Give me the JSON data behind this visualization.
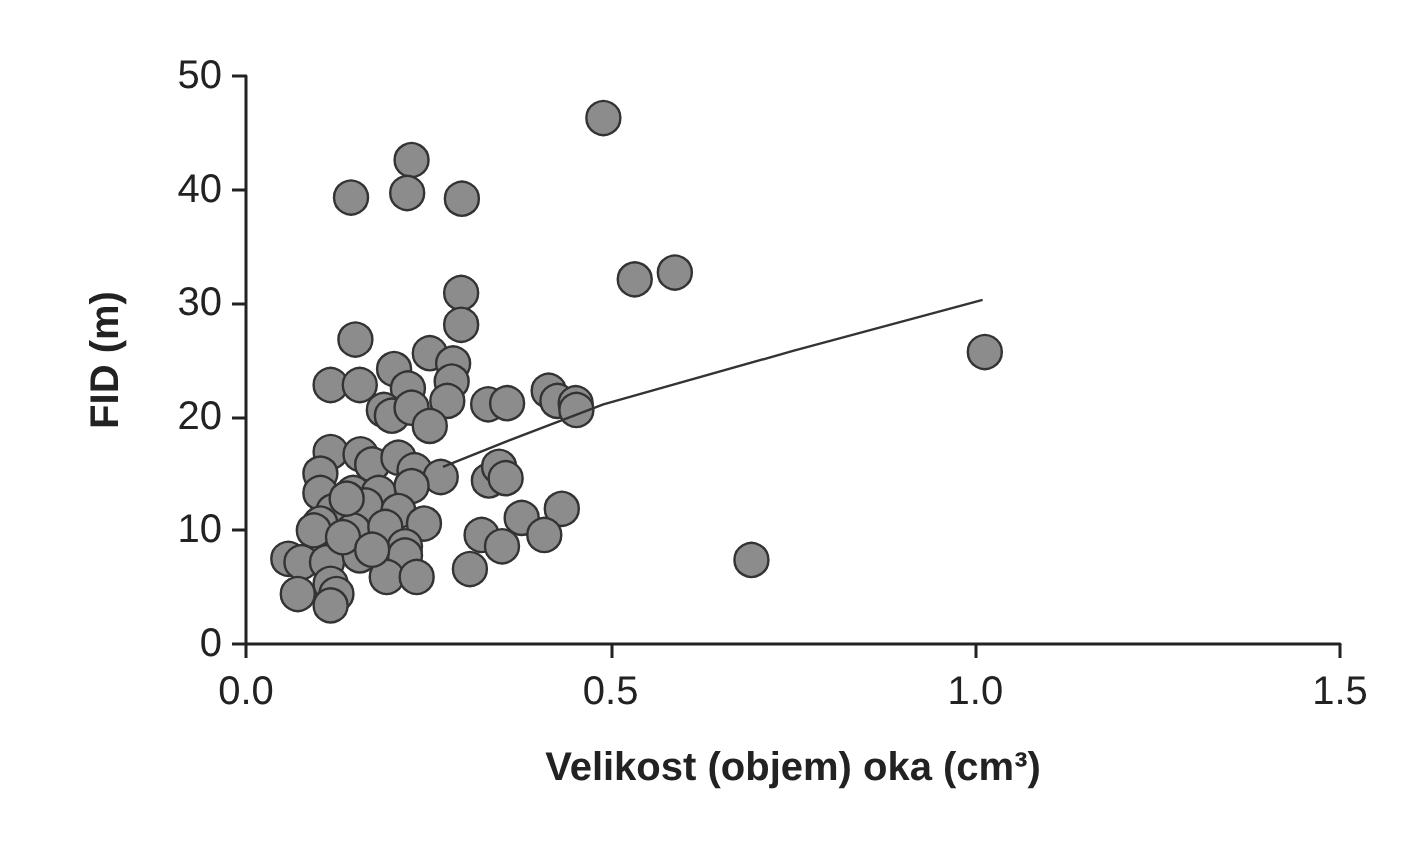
{
  "chart_data": {
    "type": "scatter",
    "xlabel": "Velikost (objem) oka (cm³)",
    "ylabel": "FID (m)",
    "xlim": [
      0,
      1.5
    ],
    "xticks": [
      {
        "value": 0,
        "label": "0.0"
      },
      0.5,
      {
        "value": 1,
        "label": "1.0"
      },
      1.5
    ],
    "ylim": [
      0,
      50
    ],
    "yticks": [
      0,
      10,
      20,
      30,
      40,
      50
    ],
    "grid": false,
    "marker": "circle",
    "series": [
      {
        "color": "#8c8c8c",
        "x": [
          0.49,
          0.227,
          0.144,
          0.221,
          0.296,
          0.533,
          0.588,
          0.295,
          0.295,
          0.15,
          0.252,
          0.203,
          0.284,
          0.282,
          0.116,
          0.156,
          0.222,
          0.276,
          0.332,
          0.358,
          0.415,
          0.427,
          0.452,
          0.453,
          0.189,
          0.2,
          0.227,
          0.252,
          0.116,
          0.157,
          0.173,
          0.209,
          0.102,
          0.231,
          0.267,
          0.333,
          0.347,
          0.356,
          0.102,
          0.147,
          0.182,
          0.227,
          0.12,
          0.164,
          0.209,
          0.102,
          0.147,
          0.191,
          0.244,
          0.378,
          0.433,
          0.323,
          0.409,
          0.351,
          0.218,
          0.058,
          0.076,
          0.111,
          0.156,
          0.218,
          0.693,
          0.307,
          0.193,
          0.234,
          0.071,
          0.116,
          0.124,
          0.116,
          0.093,
          0.133,
          0.173,
          0.138,
          1.013
        ],
        "values": [
          46.3,
          42.6,
          39.3,
          39.7,
          39.2,
          32.1,
          32.7,
          30.9,
          28.1,
          26.8,
          25.6,
          24.2,
          24.7,
          23.1,
          22.8,
          22.8,
          22.5,
          21.4,
          21.1,
          21.2,
          22.3,
          21.4,
          21.2,
          20.6,
          20.6,
          20.1,
          20.8,
          19.2,
          16.9,
          16.7,
          15.8,
          16.4,
          15.0,
          15.3,
          14.7,
          14.4,
          15.6,
          14.6,
          13.3,
          13.3,
          13.3,
          13.9,
          11.7,
          12.2,
          11.7,
          10.6,
          10.0,
          10.3,
          10.6,
          11.1,
          11.9,
          9.6,
          9.6,
          8.6,
          8.6,
          7.5,
          7.2,
          7.2,
          7.8,
          7.8,
          7.4,
          6.6,
          5.9,
          5.9,
          4.4,
          5.3,
          4.4,
          3.4,
          10.0,
          9.4,
          8.3,
          12.8,
          25.7
        ]
      },
      {
        "type": "line",
        "color": "#333333",
        "line_style": "solid",
        "marker": "none",
        "x": [
          0.27,
          0.36,
          0.49,
          0.75,
          1.01
        ],
        "values": [
          15.6,
          17.9,
          21.1,
          25.8,
          30.3
        ]
      }
    ]
  }
}
